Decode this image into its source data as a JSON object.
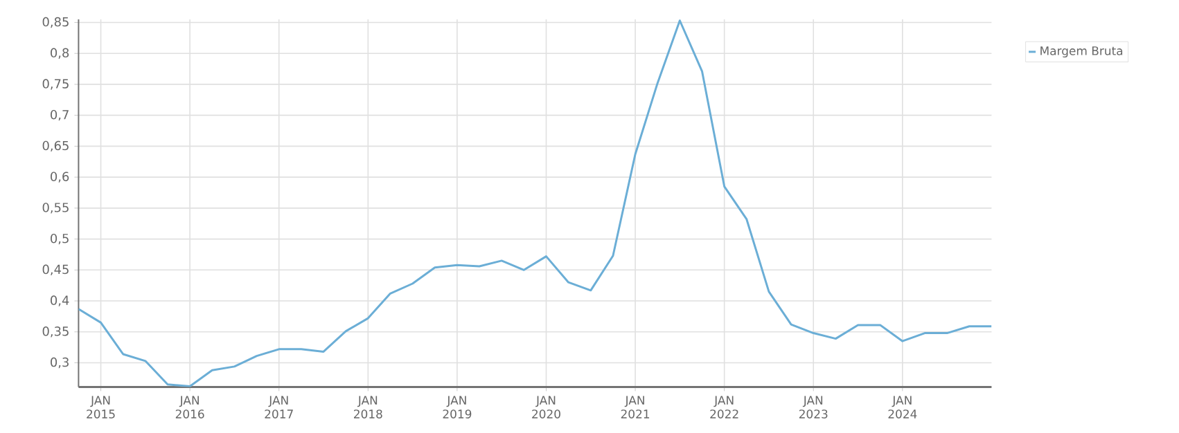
{
  "chart_data": {
    "type": "line",
    "x": [
      "2014-10",
      "2015-01",
      "2015-04",
      "2015-07",
      "2015-10",
      "2016-01",
      "2016-04",
      "2016-07",
      "2016-10",
      "2017-01",
      "2017-04",
      "2017-07",
      "2017-10",
      "2018-01",
      "2018-04",
      "2018-07",
      "2018-10",
      "2019-01",
      "2019-04",
      "2019-07",
      "2019-10",
      "2020-01",
      "2020-04",
      "2020-07",
      "2020-10",
      "2021-01",
      "2021-04",
      "2021-07",
      "2021-10",
      "2022-01",
      "2022-04",
      "2022-07",
      "2022-10",
      "2023-01",
      "2023-04",
      "2023-07",
      "2023-10",
      "2024-01",
      "2024-04",
      "2024-07",
      "2024-10",
      "2025-01"
    ],
    "series": [
      {
        "name": "Margem Bruta",
        "color": "#6baed6",
        "values": [
          0.387,
          0.365,
          0.314,
          0.303,
          0.265,
          0.262,
          0.288,
          0.294,
          0.311,
          0.322,
          0.322,
          0.318,
          0.351,
          0.372,
          0.412,
          0.428,
          0.454,
          0.458,
          0.456,
          0.465,
          0.45,
          0.472,
          0.43,
          0.417,
          0.473,
          0.637,
          0.752,
          0.853,
          0.771,
          0.585,
          0.532,
          0.415,
          0.362,
          0.348,
          0.339,
          0.361,
          0.361,
          0.335,
          0.348,
          0.348,
          0.359,
          0.359
        ]
      }
    ],
    "xlim": [
      "2014-10",
      "2025-01"
    ],
    "xticks": [
      {
        "value": "2015-01",
        "label": "JAN 2015"
      },
      {
        "value": "2016-01",
        "label": "JAN 2016"
      },
      {
        "value": "2017-01",
        "label": "JAN 2017"
      },
      {
        "value": "2018-01",
        "label": "JAN 2018"
      },
      {
        "value": "2019-01",
        "label": "JAN 2019"
      },
      {
        "value": "2020-01",
        "label": "JAN 2020"
      },
      {
        "value": "2021-01",
        "label": "JAN 2021"
      },
      {
        "value": "2022-01",
        "label": "JAN 2022"
      },
      {
        "value": "2023-01",
        "label": "JAN 2023"
      },
      {
        "value": "2024-01",
        "label": "JAN 2024"
      }
    ],
    "ylim": [
      0.261,
      0.855
    ],
    "yticks": [
      {
        "value": 0.3,
        "label": "0,3"
      },
      {
        "value": 0.35,
        "label": "0,35"
      },
      {
        "value": 0.4,
        "label": "0,4"
      },
      {
        "value": 0.45,
        "label": "0,45"
      },
      {
        "value": 0.5,
        "label": "0,5"
      },
      {
        "value": 0.55,
        "label": "0,55"
      },
      {
        "value": 0.6,
        "label": "0,6"
      },
      {
        "value": 0.65,
        "label": "0,65"
      },
      {
        "value": 0.7,
        "label": "0,7"
      },
      {
        "value": 0.75,
        "label": "0,75"
      },
      {
        "value": 0.8,
        "label": "0,8"
      },
      {
        "value": 0.85,
        "label": "0,85"
      }
    ],
    "grid": true,
    "legend": "top right"
  }
}
